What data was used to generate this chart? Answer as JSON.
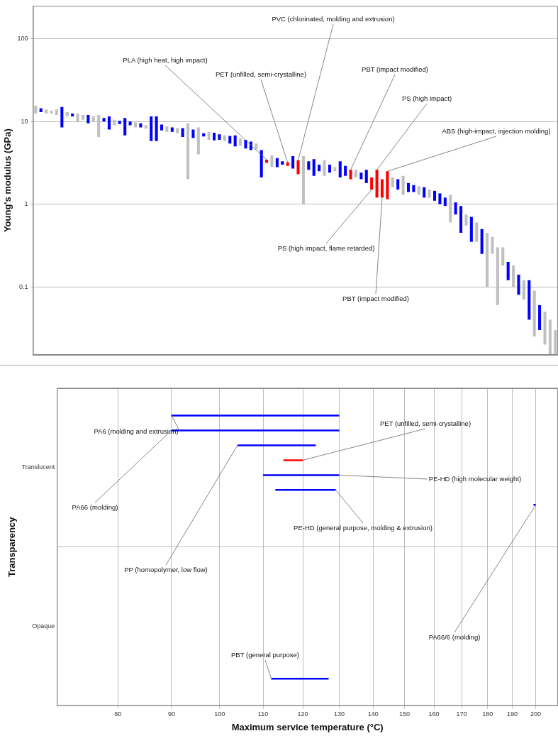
{
  "chart_data": [
    {
      "type": "bar",
      "ylabel": "Young's modulus (GPa)",
      "log": true,
      "ylim": [
        0.015,
        250
      ],
      "yticks": [
        0.1,
        1,
        10,
        100
      ],
      "grid": "y",
      "tick_labels": "y",
      "categories": [
        null,
        null,
        null,
        null,
        null,
        null,
        null,
        null,
        null,
        null,
        null,
        null,
        null,
        null,
        null,
        null,
        null,
        null,
        null,
        null,
        null,
        null,
        null,
        null,
        null,
        null,
        null,
        null,
        null,
        null,
        null,
        null,
        null,
        null,
        null,
        null,
        null,
        null,
        null,
        null,
        null,
        null,
        null,
        null,
        null,
        null,
        null,
        null,
        null,
        null,
        null,
        null,
        null,
        null,
        null,
        null,
        null,
        null,
        null,
        null,
        null,
        null,
        null,
        null,
        null,
        null,
        null,
        null,
        null,
        null,
        null,
        null,
        null,
        null,
        null,
        null,
        null,
        null,
        null,
        null,
        null,
        null,
        null,
        null,
        null,
        null,
        null,
        null,
        null,
        null,
        null,
        null,
        null,
        null,
        null,
        null,
        null,
        null,
        null,
        null
      ],
      "base": [
        12.5,
        13,
        12.5,
        12.5,
        12,
        8.5,
        11.5,
        11.5,
        9.8,
        10.5,
        9.5,
        10,
        6.5,
        10,
        8,
        9,
        9.3,
        6.8,
        9,
        8.5,
        8.5,
        8.2,
        5.8,
        5.8,
        7.8,
        7.5,
        7.5,
        7.2,
        6.5,
        2,
        6.3,
        4,
        6.6,
        6,
        5.9,
        6,
        5.8,
        5.4,
        5,
        5.1,
        4.7,
        4.5,
        4.6,
        2.1,
        3.15,
        2.8,
        2.8,
        3,
        2.9,
        2.7,
        2.3,
        1,
        2.6,
        2.2,
        2.5,
        2.2,
        2.4,
        2.5,
        2.1,
        2.2,
        2,
        2.1,
        2,
        1.8,
        1.5,
        1.2,
        1.2,
        1.15,
        1.6,
        1.5,
        1.3,
        1.4,
        1.4,
        1.3,
        1.2,
        1.2,
        1.1,
        1,
        0.95,
        0.6,
        0.75,
        0.45,
        0.55,
        0.35,
        0.35,
        0.25,
        0.1,
        0.25,
        0.06,
        0.18,
        0.12,
        0.1,
        0.08,
        0.07,
        0.04,
        0.025,
        0.03,
        0.02,
        0.015,
        0.015
      ],
      "values": [
        3,
        1.5,
        1.5,
        1,
        2,
        6.5,
        1.5,
        1,
        2.7,
        1.5,
        2.5,
        1.5,
        5.5,
        1,
        3.5,
        1.5,
        0.9,
        4.2,
        1,
        1.3,
        1,
        0.8,
        5.7,
        5.7,
        1.4,
        1.2,
        1,
        1.1,
        1.8,
        7.5,
        1.7,
        4.5,
        0.6,
        1.5,
        1.4,
        1,
        1,
        1.3,
        1.8,
        1.1,
        1.3,
        1.2,
        0.8,
        2.4,
        0.3,
        1.1,
        0.8,
        0.3,
        0.3,
        1.1,
        1.1,
        2.8,
        0.7,
        1.3,
        0.5,
        1.2,
        0.6,
        0.3,
        1.2,
        0.7,
        0.6,
        0.5,
        0.4,
        0.8,
        0.6,
        1.4,
        0.8,
        1.35,
        0.5,
        0.5,
        0.9,
        0.4,
        0.3,
        0.35,
        0.4,
        0.3,
        0.35,
        0.35,
        0.25,
        0.7,
        0.3,
        0.5,
        0.2,
        0.35,
        0.25,
        0.25,
        0.35,
        0.15,
        0.24,
        0.12,
        0.08,
        0.08,
        0.06,
        0.05,
        0.08,
        0.065,
        0.03,
        0.03,
        0.025,
        0.015
      ],
      "colors": [
        "#c0c0c0",
        "#0000ff",
        "#c0c0c0",
        "#c0c0c0",
        "#c0c0c0",
        "#0000ff",
        "#c0c0c0",
        "#0000ff",
        "#c0c0c0",
        "#c0c0c0",
        "#0000ff",
        "#c0c0c0",
        "#c0c0c0",
        "#0000ff",
        "#0000ff",
        "#c0c0c0",
        "#0000ff",
        "#0000ff",
        "#0000ff",
        "#c0c0c0",
        "#0000ff",
        "#c0c0c0",
        "#0000ff",
        "#0000ff",
        "#0000ff",
        "#c0c0c0",
        "#0000ff",
        "#c0c0c0",
        "#0000ff",
        "#c0c0c0",
        "#0000ff",
        "#c0c0c0",
        "#0000ff",
        "#c0c0c0",
        "#0000ff",
        "#0000ff",
        "#c0c0c0",
        "#0000ff",
        "#0000ff",
        "#c0c0c0",
        "#0000ff",
        "#0000ff",
        "#c0c0c0",
        "#0000ff",
        "#ff0000",
        "#c0c0c0",
        "#0000ff",
        "#0000ff",
        "#ff0000",
        "#0000ff",
        "#ff0000",
        "#c0c0c0",
        "#0000ff",
        "#0000ff",
        "#0000ff",
        "#c0c0c0",
        "#0000ff",
        "#c0c0c0",
        "#0000ff",
        "#0000ff",
        "#ff0000",
        "#c0c0c0",
        "#0000ff",
        "#0000ff",
        "#ff0000",
        "#ff0000",
        "#ff0000",
        "#ff0000",
        "#c0c0c0",
        "#0000ff",
        "#c0c0c0",
        "#0000ff",
        "#0000ff",
        "#c0c0c0",
        "#0000ff",
        "#c0c0c0",
        "#0000ff",
        "#0000ff",
        "#0000ff",
        "#c0c0c0",
        "#0000ff",
        "#0000ff",
        "#c0c0c0",
        "#0000ff",
        "#c0c0c0",
        "#0000ff",
        "#c0c0c0",
        "#c0c0c0",
        "#c0c0c0",
        "#c0c0c0",
        "#0000ff",
        "#c0c0c0",
        "#0000ff",
        "#c0c0c0",
        "#0000ff",
        "#c0c0c0",
        "#0000ff",
        "#c0c0c0",
        "#c0c0c0",
        "#c0c0c0"
      ],
      "annotations": [
        "PLA (high heat, high impact)",
        "PET (unfilled, semi-crystalline)",
        "PVC (chlorinated, molding and extrusion)",
        "PBT (impact modified)",
        "PS (high impact, flame retarded)",
        "PS (high impact)",
        "PBT (impact modified)",
        "ABS (high-impact, injection molding)"
      ]
    },
    {
      "type": "bar",
      "orientation": "horizontal",
      "xlabel": "Maximum service temperature (°C)",
      "ylabel": "Transparency",
      "log": "x",
      "grid": true,
      "xlim": [
        70,
        210
      ],
      "xticks": [
        80,
        90,
        100,
        110,
        120,
        130,
        140,
        150,
        160,
        170,
        180,
        190,
        200
      ],
      "categories": [
        "Translucent",
        "Opaque"
      ],
      "series": [
        {
          "name": "PA6 (molding and extrusion)",
          "color": "#0000ff",
          "base": [
            90,
            null
          ],
          "values": [
            40,
            null
          ]
        },
        {
          "name": "PA66 (molding)",
          "color": "#0000ff",
          "base": [
            90,
            null
          ],
          "values": [
            40,
            null
          ]
        },
        {
          "name": "PP (homopolymer, low flow)",
          "color": "#0000ff",
          "base": [
            104,
            null
          ],
          "values": [
            19.5,
            null
          ]
        },
        {
          "name": "PET (unfilled, semi-crystalline)",
          "color": "#ff0000",
          "base": [
            115,
            null
          ],
          "values": [
            5,
            null
          ]
        },
        {
          "name": "PE-HD (high molecular weight)",
          "color": "#0000ff",
          "base": [
            110,
            null
          ],
          "values": [
            20,
            null
          ]
        },
        {
          "name": "PE-HD (general purpose, molding & extrusion)",
          "color": "#0000ff",
          "base": [
            113,
            null
          ],
          "values": [
            16,
            null
          ]
        },
        {
          "name": "PA66/6 (molding)",
          "color": "#0000ff",
          "base": [
            199,
            null
          ],
          "values": [
            1,
            null
          ]
        },
        {
          "name": "PBT (general purpose)",
          "color": "#0000ff",
          "base": [
            null,
            112
          ],
          "values": [
            null,
            15
          ]
        }
      ]
    }
  ]
}
